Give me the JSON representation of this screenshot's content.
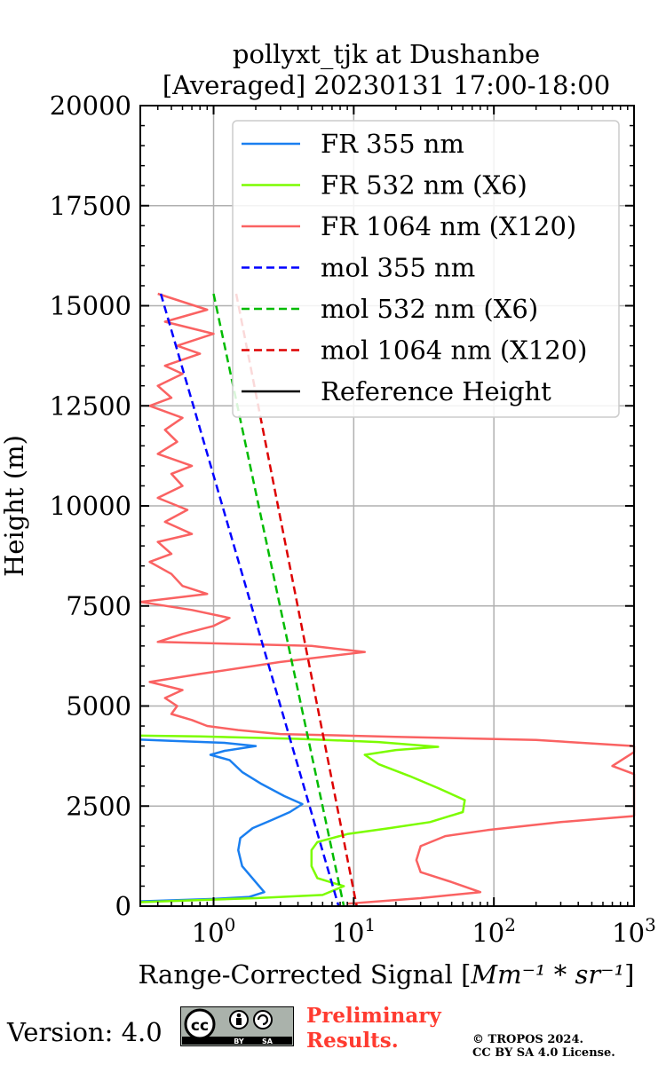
{
  "chart_data": {
    "type": "line",
    "title": "pollyxt_tjk at Dushanbe",
    "subtitle": "[Averaged] 20230131 17:00-18:00",
    "xlabel_text": "Range-Corrected Signal [",
    "xlabel_units": "Mm⁻¹ * sr⁻¹",
    "xlabel_close": "]",
    "ylabel": "Height (m)",
    "xscale": "log",
    "xlim": [
      0.3,
      1000
    ],
    "ylim": [
      0,
      20000
    ],
    "grid": true,
    "legend_position": "top-right",
    "x_ticks": [
      {
        "value": 1,
        "base": "10",
        "exp": "0"
      },
      {
        "value": 10,
        "base": "10",
        "exp": "1"
      },
      {
        "value": 100,
        "base": "10",
        "exp": "2"
      },
      {
        "value": 1000,
        "base": "10",
        "exp": "3"
      }
    ],
    "y_ticks": [
      {
        "value": 0,
        "label": "0"
      },
      {
        "value": 2500,
        "label": "2500"
      },
      {
        "value": 5000,
        "label": "5000"
      },
      {
        "value": 7500,
        "label": "7500"
      },
      {
        "value": 10000,
        "label": "10000"
      },
      {
        "value": 12500,
        "label": "12500"
      },
      {
        "value": 15000,
        "label": "15000"
      },
      {
        "value": 17500,
        "label": "17500"
      },
      {
        "value": 20000,
        "label": "20000"
      }
    ],
    "series": [
      {
        "name": "FR 355 nm",
        "color": "#1a7ff0",
        "style": "solid",
        "points": [
          [
            0.3,
            120
          ],
          [
            1.0,
            180
          ],
          [
            1.8,
            230
          ],
          [
            2.3,
            350
          ],
          [
            2.0,
            600
          ],
          [
            1.6,
            1000
          ],
          [
            1.5,
            1400
          ],
          [
            1.55,
            1700
          ],
          [
            1.9,
            1950
          ],
          [
            2.6,
            2150
          ],
          [
            3.5,
            2350
          ],
          [
            4.3,
            2550
          ],
          [
            3.2,
            2750
          ],
          [
            2.2,
            3050
          ],
          [
            1.6,
            3350
          ],
          [
            1.3,
            3650
          ],
          [
            0.95,
            3780
          ],
          [
            1.2,
            3880
          ],
          [
            2.0,
            4000
          ],
          [
            1.2,
            4080
          ],
          [
            0.5,
            4130
          ],
          [
            0.3,
            4160
          ]
        ]
      },
      {
        "name": "FR 532 nm (X6)",
        "color": "#7cfc00",
        "style": "solid",
        "points": [
          [
            0.3,
            100
          ],
          [
            2.0,
            200
          ],
          [
            6.0,
            280
          ],
          [
            8.5,
            500
          ],
          [
            5.5,
            700
          ],
          [
            5.0,
            1000
          ],
          [
            5.0,
            1400
          ],
          [
            5.5,
            1600
          ],
          [
            9.0,
            1800
          ],
          [
            18,
            1950
          ],
          [
            35,
            2100
          ],
          [
            60,
            2350
          ],
          [
            62,
            2650
          ],
          [
            40,
            2950
          ],
          [
            25,
            3250
          ],
          [
            15,
            3550
          ],
          [
            12,
            3780
          ],
          [
            20,
            3900
          ],
          [
            40,
            3980
          ],
          [
            15,
            4100
          ],
          [
            4,
            4180
          ],
          [
            0.8,
            4240
          ],
          [
            0.3,
            4260
          ]
        ]
      },
      {
        "name": "FR 1064 nm (X120)",
        "color": "#fa6262",
        "style": "solid",
        "points": [
          [
            9.0,
            60
          ],
          [
            30,
            200
          ],
          [
            80,
            350
          ],
          [
            50,
            600
          ],
          [
            30,
            850
          ],
          [
            28,
            1150
          ],
          [
            30,
            1500
          ],
          [
            45,
            1750
          ],
          [
            90,
            1900
          ],
          [
            300,
            2100
          ],
          [
            1000,
            2250
          ],
          [
            1000,
            3300
          ],
          [
            700,
            3500
          ],
          [
            1000,
            3850
          ],
          [
            1000,
            4000
          ],
          [
            200,
            4150
          ],
          [
            20,
            4230
          ],
          [
            3,
            4300
          ],
          [
            1.5,
            4400
          ],
          [
            0.9,
            4500
          ],
          [
            0.7,
            4650
          ],
          [
            0.5,
            4800
          ],
          [
            0.55,
            5000
          ],
          [
            0.45,
            5200
          ],
          [
            0.6,
            5400
          ],
          [
            0.35,
            5600
          ],
          [
            0.8,
            5800
          ],
          [
            3.0,
            6100
          ],
          [
            12,
            6350
          ],
          [
            5,
            6500
          ],
          [
            0.4,
            6600
          ],
          [
            0.6,
            6800
          ],
          [
            1.0,
            7000
          ],
          [
            1.3,
            7200
          ],
          [
            0.7,
            7400
          ],
          [
            0.3,
            7600
          ],
          [
            0.9,
            7800
          ],
          [
            0.6,
            8000
          ],
          [
            0.5,
            8300
          ],
          [
            0.35,
            8600
          ],
          [
            0.5,
            8800
          ],
          [
            0.4,
            9100
          ],
          [
            0.7,
            9300
          ],
          [
            0.45,
            9600
          ],
          [
            0.65,
            9900
          ],
          [
            0.4,
            10200
          ],
          [
            0.6,
            10500
          ],
          [
            0.5,
            10800
          ],
          [
            0.7,
            11000
          ],
          [
            0.4,
            11300
          ],
          [
            0.55,
            11600
          ],
          [
            0.45,
            11900
          ],
          [
            0.6,
            12200
          ],
          [
            0.35,
            12500
          ],
          [
            0.5,
            12700
          ],
          [
            0.4,
            13000
          ],
          [
            0.6,
            13300
          ],
          [
            0.45,
            13500
          ],
          [
            0.8,
            13800
          ],
          [
            0.55,
            14000
          ],
          [
            1.0,
            14300
          ],
          [
            0.45,
            14600
          ],
          [
            0.9,
            14900
          ],
          [
            0.6,
            15100
          ],
          [
            0.4,
            15300
          ]
        ]
      },
      {
        "name": "mol 355 nm",
        "color": "#0000ff",
        "style": "dashed",
        "points": [
          [
            0.42,
            15300
          ],
          [
            7.8,
            0
          ]
        ]
      },
      {
        "name": "mol 532 nm (X6)",
        "color": "#00bb00",
        "style": "dashed",
        "points": [
          [
            1.0,
            15300
          ],
          [
            8.5,
            0
          ]
        ]
      },
      {
        "name": "mol 1064 nm (X120)",
        "color": "#dd0000",
        "style": "dashed",
        "points": [
          [
            1.45,
            15300
          ],
          [
            10.5,
            0
          ]
        ]
      },
      {
        "name": "Reference Height",
        "color": "#000000",
        "style": "solid",
        "points": []
      }
    ]
  },
  "footer": {
    "version": "Version: 4.0",
    "cc_label": "cc",
    "by_label": "BY",
    "sa_label": "SA",
    "preliminary": "Preliminary\nResults.",
    "copyright": "© TROPOS 2024.\nCC BY SA 4.0 License."
  }
}
